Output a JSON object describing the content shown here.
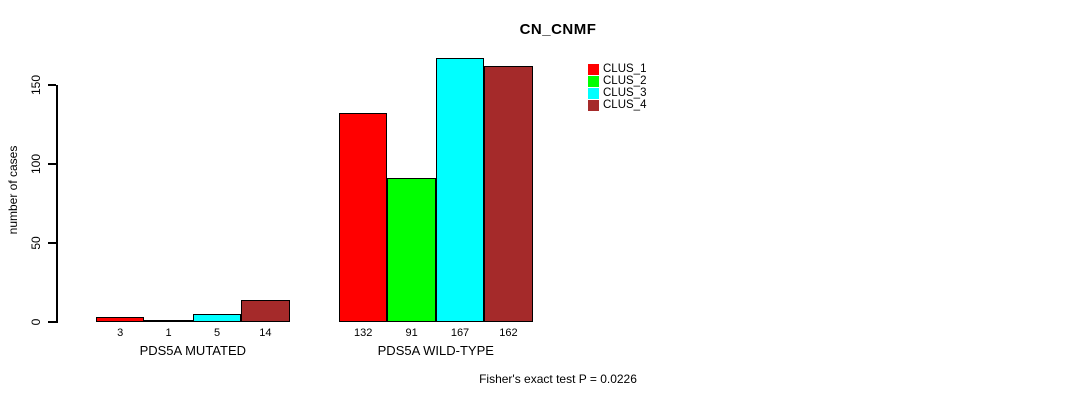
{
  "title": "CN_CNMF",
  "footer": "Fisher's exact test P = 0.0226",
  "chart_data": {
    "type": "bar",
    "title": "CN_CNMF",
    "xlabel": "",
    "ylabel": "number of cases",
    "categories": [
      "PDS5A MUTATED",
      "PDS5A WILD-TYPE"
    ],
    "series": [
      {
        "name": "CLUS_1",
        "color": "#ff0000",
        "values": [
          3,
          132
        ]
      },
      {
        "name": "CLUS_2",
        "color": "#00ff00",
        "values": [
          1,
          91
        ]
      },
      {
        "name": "CLUS_3",
        "color": "#00ffff",
        "values": [
          5,
          167
        ]
      },
      {
        "name": "CLUS_4",
        "color": "#a52a2a",
        "values": [
          14,
          162
        ]
      }
    ],
    "yticks": [
      0,
      50,
      100,
      150
    ],
    "ylim": [
      0,
      170
    ],
    "grid": false,
    "legend_position": "right",
    "bar_value_labels_shown": true,
    "annotation": "Fisher's exact test P = 0.0226"
  }
}
